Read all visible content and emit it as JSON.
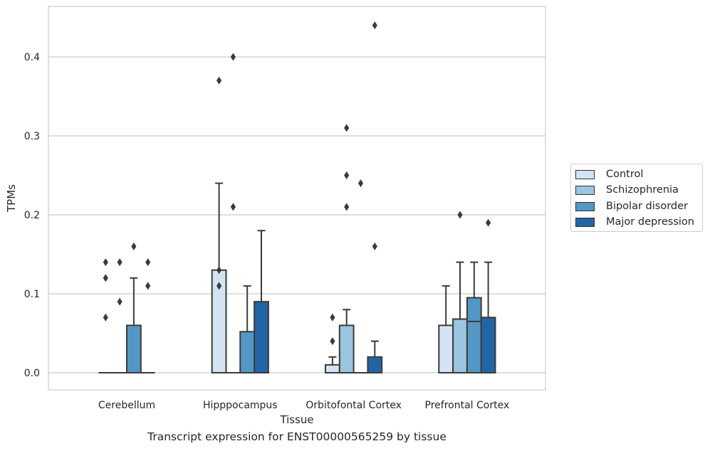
{
  "chart_data": {
    "type": "bar",
    "ylabel": "TPMs",
    "xlabel": "Tissue",
    "caption": "Transcript expression for ENST00000565259 by tissue",
    "ylim": [
      -0.022,
      0.465
    ],
    "yticks": [
      0.0,
      0.1,
      0.2,
      0.3,
      0.4
    ],
    "ytick_labels": [
      "0.0",
      "0.1",
      "0.2",
      "0.3",
      "0.4"
    ],
    "grid": true,
    "legend_position": "right",
    "categories": [
      "Cerebellum",
      "Hipppocampus",
      "Orbitofontal Cortex",
      "Prefrontal Cortex"
    ],
    "series": [
      {
        "name": "Control",
        "color": "#d3e3f2",
        "values": [
          0.0,
          0.13,
          0.01,
          0.06
        ],
        "whisker_high": [
          0.0,
          0.24,
          0.02,
          0.11
        ],
        "outliers": [
          [
            0.07,
            0.12,
            0.14
          ],
          [
            0.11,
            0.13,
            0.37
          ],
          [
            0.04,
            0.07
          ],
          []
        ]
      },
      {
        "name": "Schizophrenia",
        "color": "#9ac4df",
        "values": [
          0.0,
          0.0,
          0.06,
          0.068
        ],
        "whisker_high": [
          0.0,
          0.0,
          0.08,
          0.14
        ],
        "outliers": [
          [
            0.09,
            0.14
          ],
          [
            0.21,
            0.4
          ],
          [
            0.21,
            0.25,
            0.31
          ],
          [
            0.2
          ]
        ]
      },
      {
        "name": "Bipolar disorder",
        "color": "#5497c5",
        "values": [
          0.06,
          0.052,
          0.0,
          0.095
        ],
        "median": [
          0.0,
          0.0,
          0.0,
          0.065
        ],
        "whisker_high": [
          0.12,
          0.11,
          0.0,
          0.14
        ],
        "outliers": [
          [
            0.16
          ],
          [],
          [
            0.24
          ],
          []
        ]
      },
      {
        "name": "Major depression",
        "color": "#2265a6",
        "values": [
          0.0,
          0.09,
          0.02,
          0.07
        ],
        "whisker_high": [
          0.0,
          0.18,
          0.04,
          0.14
        ],
        "outliers": [
          [
            0.11,
            0.14
          ],
          [],
          [
            0.16,
            0.44
          ],
          [
            0.19
          ]
        ]
      }
    ]
  }
}
